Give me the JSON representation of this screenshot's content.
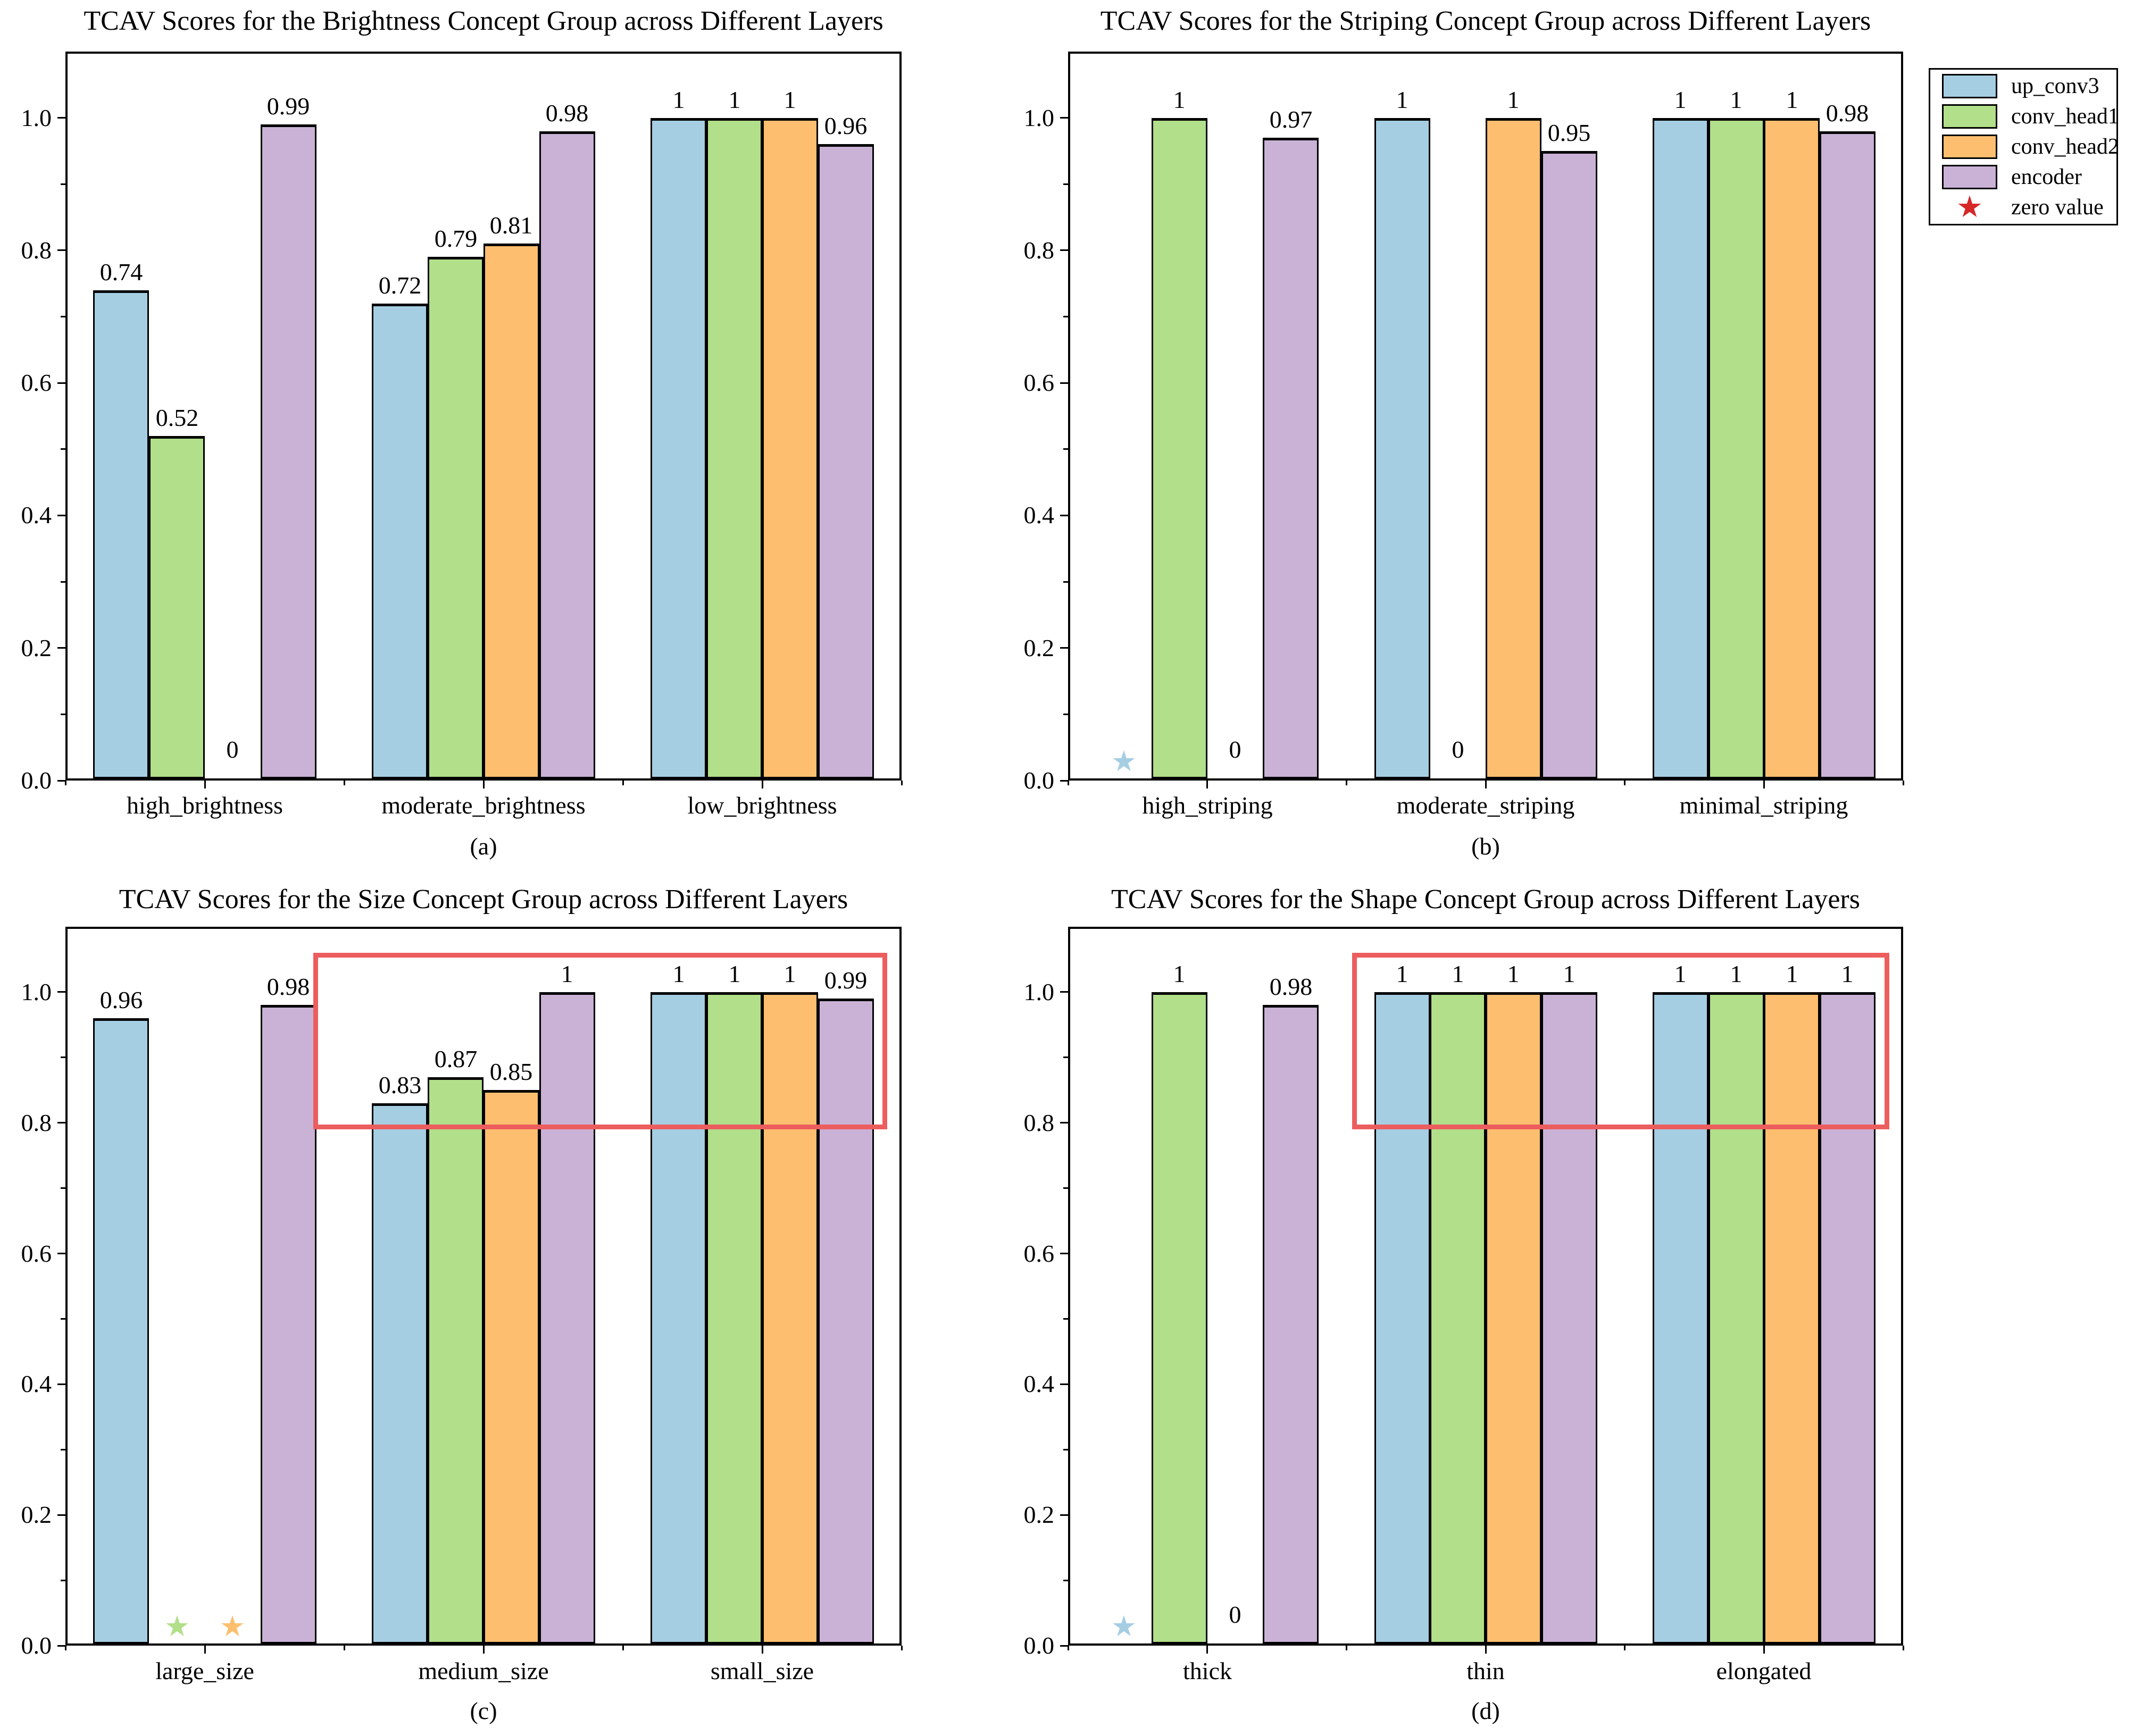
{
  "colors": {
    "up_conv3": "#a6cee3",
    "conv_head1": "#b2df8a",
    "conv_head2": "#fdbf6f",
    "encoder": "#cab2d6",
    "bar_edge": "#000000",
    "highlight_box": "#ec5d5e",
    "legend_zero_star": "#d62728"
  },
  "legend": {
    "items": [
      {
        "label": "up_conv3",
        "color": "#a6cee3"
      },
      {
        "label": "conv_head1",
        "color": "#b2df8a"
      },
      {
        "label": "conv_head2",
        "color": "#fdbf6f"
      },
      {
        "label": "encoder",
        "color": "#cab2d6"
      }
    ],
    "zero": {
      "label": "zero value",
      "symbol": "★",
      "color": "#d62728"
    }
  },
  "axes": {
    "ytick_labels": [
      "0.0",
      "0.2",
      "0.4",
      "0.6",
      "0.8",
      "1.0"
    ],
    "ymax": 1.1,
    "minor_step": 0.1
  },
  "chart_data": [
    {
      "id": "a",
      "type": "bar",
      "title": "TCAV Scores for the Brightness Concept Group across Different Layers",
      "caption": "(a)",
      "ylim": [
        0,
        1.1
      ],
      "categories": [
        "high_brightness",
        "moderate_brightness",
        "low_brightness"
      ],
      "series_names": [
        "up_conv3",
        "conv_head1",
        "conv_head2",
        "encoder"
      ],
      "cells": [
        [
          {
            "value": 0.74,
            "label": "0.74",
            "display": "bar"
          },
          {
            "value": 0.52,
            "label": "0.52",
            "display": "bar"
          },
          {
            "value": 0,
            "label": "0",
            "display": "zero-text"
          },
          {
            "value": 0.99,
            "label": "0.99",
            "display": "bar"
          }
        ],
        [
          {
            "value": 0.72,
            "label": "0.72",
            "display": "bar"
          },
          {
            "value": 0.79,
            "label": "0.79",
            "display": "bar"
          },
          {
            "value": 0.81,
            "label": "0.81",
            "display": "bar"
          },
          {
            "value": 0.98,
            "label": "0.98",
            "display": "bar"
          }
        ],
        [
          {
            "value": 1,
            "label": "1",
            "display": "bar"
          },
          {
            "value": 1,
            "label": "1",
            "display": "bar"
          },
          {
            "value": 1,
            "label": "1",
            "display": "bar"
          },
          {
            "value": 0.96,
            "label": "0.96",
            "display": "bar"
          }
        ]
      ],
      "highlight_box": null
    },
    {
      "id": "b",
      "type": "bar",
      "title": "TCAV Scores for the Striping Concept Group across Different Layers",
      "caption": "(b)",
      "ylim": [
        0,
        1.1
      ],
      "categories": [
        "high_striping",
        "moderate_striping",
        "minimal_striping"
      ],
      "series_names": [
        "up_conv3",
        "conv_head1",
        "conv_head2",
        "encoder"
      ],
      "cells": [
        [
          {
            "value": 0,
            "label": "",
            "display": "star"
          },
          {
            "value": 1,
            "label": "1",
            "display": "bar"
          },
          {
            "value": 0,
            "label": "0",
            "display": "zero-text"
          },
          {
            "value": 0.97,
            "label": "0.97",
            "display": "bar"
          }
        ],
        [
          {
            "value": 1,
            "label": "1",
            "display": "bar"
          },
          {
            "value": 0,
            "label": "0",
            "display": "zero-text"
          },
          {
            "value": 1,
            "label": "1",
            "display": "bar"
          },
          {
            "value": 0.95,
            "label": "0.95",
            "display": "bar"
          }
        ],
        [
          {
            "value": 1,
            "label": "1",
            "display": "bar"
          },
          {
            "value": 1,
            "label": "1",
            "display": "bar"
          },
          {
            "value": 1,
            "label": "1",
            "display": "bar"
          },
          {
            "value": 0.98,
            "label": "0.98",
            "display": "bar"
          }
        ]
      ],
      "highlight_box": null
    },
    {
      "id": "c",
      "type": "bar",
      "title": "TCAV Scores for the Size Concept Group across Different Layers",
      "caption": "(c)",
      "ylim": [
        0,
        1.1
      ],
      "categories": [
        "large_size",
        "medium_size",
        "small_size"
      ],
      "series_names": [
        "up_conv3",
        "conv_head1",
        "conv_head2",
        "encoder"
      ],
      "cells": [
        [
          {
            "value": 0.96,
            "label": "0.96",
            "display": "bar"
          },
          {
            "value": 0,
            "label": "",
            "display": "star"
          },
          {
            "value": 0,
            "label": "",
            "display": "star"
          },
          {
            "value": 0.98,
            "label": "0.98",
            "display": "bar"
          }
        ],
        [
          {
            "value": 0.83,
            "label": "0.83",
            "display": "bar"
          },
          {
            "value": 0.87,
            "label": "0.87",
            "display": "bar"
          },
          {
            "value": 0.85,
            "label": "0.85",
            "display": "bar"
          },
          {
            "value": 1,
            "label": "1",
            "display": "bar"
          }
        ],
        [
          {
            "value": 1,
            "label": "1",
            "display": "bar"
          },
          {
            "value": 1,
            "label": "1",
            "display": "bar"
          },
          {
            "value": 1,
            "label": "1",
            "display": "bar"
          },
          {
            "value": 0.99,
            "label": "0.99",
            "display": "bar"
          }
        ]
      ],
      "highlight_box": {
        "x0": 0.39,
        "x1": 2.45,
        "y0": 0.79,
        "y1": 1.06
      }
    },
    {
      "id": "d",
      "type": "bar",
      "title": "TCAV Scores for the Shape Concept Group across Different Layers",
      "caption": "(d)",
      "ylim": [
        0,
        1.1
      ],
      "categories": [
        "thick",
        "thin",
        "elongated"
      ],
      "series_names": [
        "up_conv3",
        "conv_head1",
        "conv_head2",
        "encoder"
      ],
      "cells": [
        [
          {
            "value": 0,
            "label": "",
            "display": "star"
          },
          {
            "value": 1,
            "label": "1",
            "display": "bar"
          },
          {
            "value": 0,
            "label": "0",
            "display": "zero-text"
          },
          {
            "value": 0.98,
            "label": "0.98",
            "display": "bar"
          }
        ],
        [
          {
            "value": 1,
            "label": "1",
            "display": "bar"
          },
          {
            "value": 1,
            "label": "1",
            "display": "bar"
          },
          {
            "value": 1,
            "label": "1",
            "display": "bar"
          },
          {
            "value": 1,
            "label": "1",
            "display": "bar"
          }
        ],
        [
          {
            "value": 1,
            "label": "1",
            "display": "bar"
          },
          {
            "value": 1,
            "label": "1",
            "display": "bar"
          },
          {
            "value": 1,
            "label": "1",
            "display": "bar"
          },
          {
            "value": 1,
            "label": "1",
            "display": "bar"
          }
        ]
      ],
      "highlight_box": {
        "x0": 0.52,
        "x1": 2.45,
        "y0": 0.79,
        "y1": 1.06
      }
    }
  ]
}
